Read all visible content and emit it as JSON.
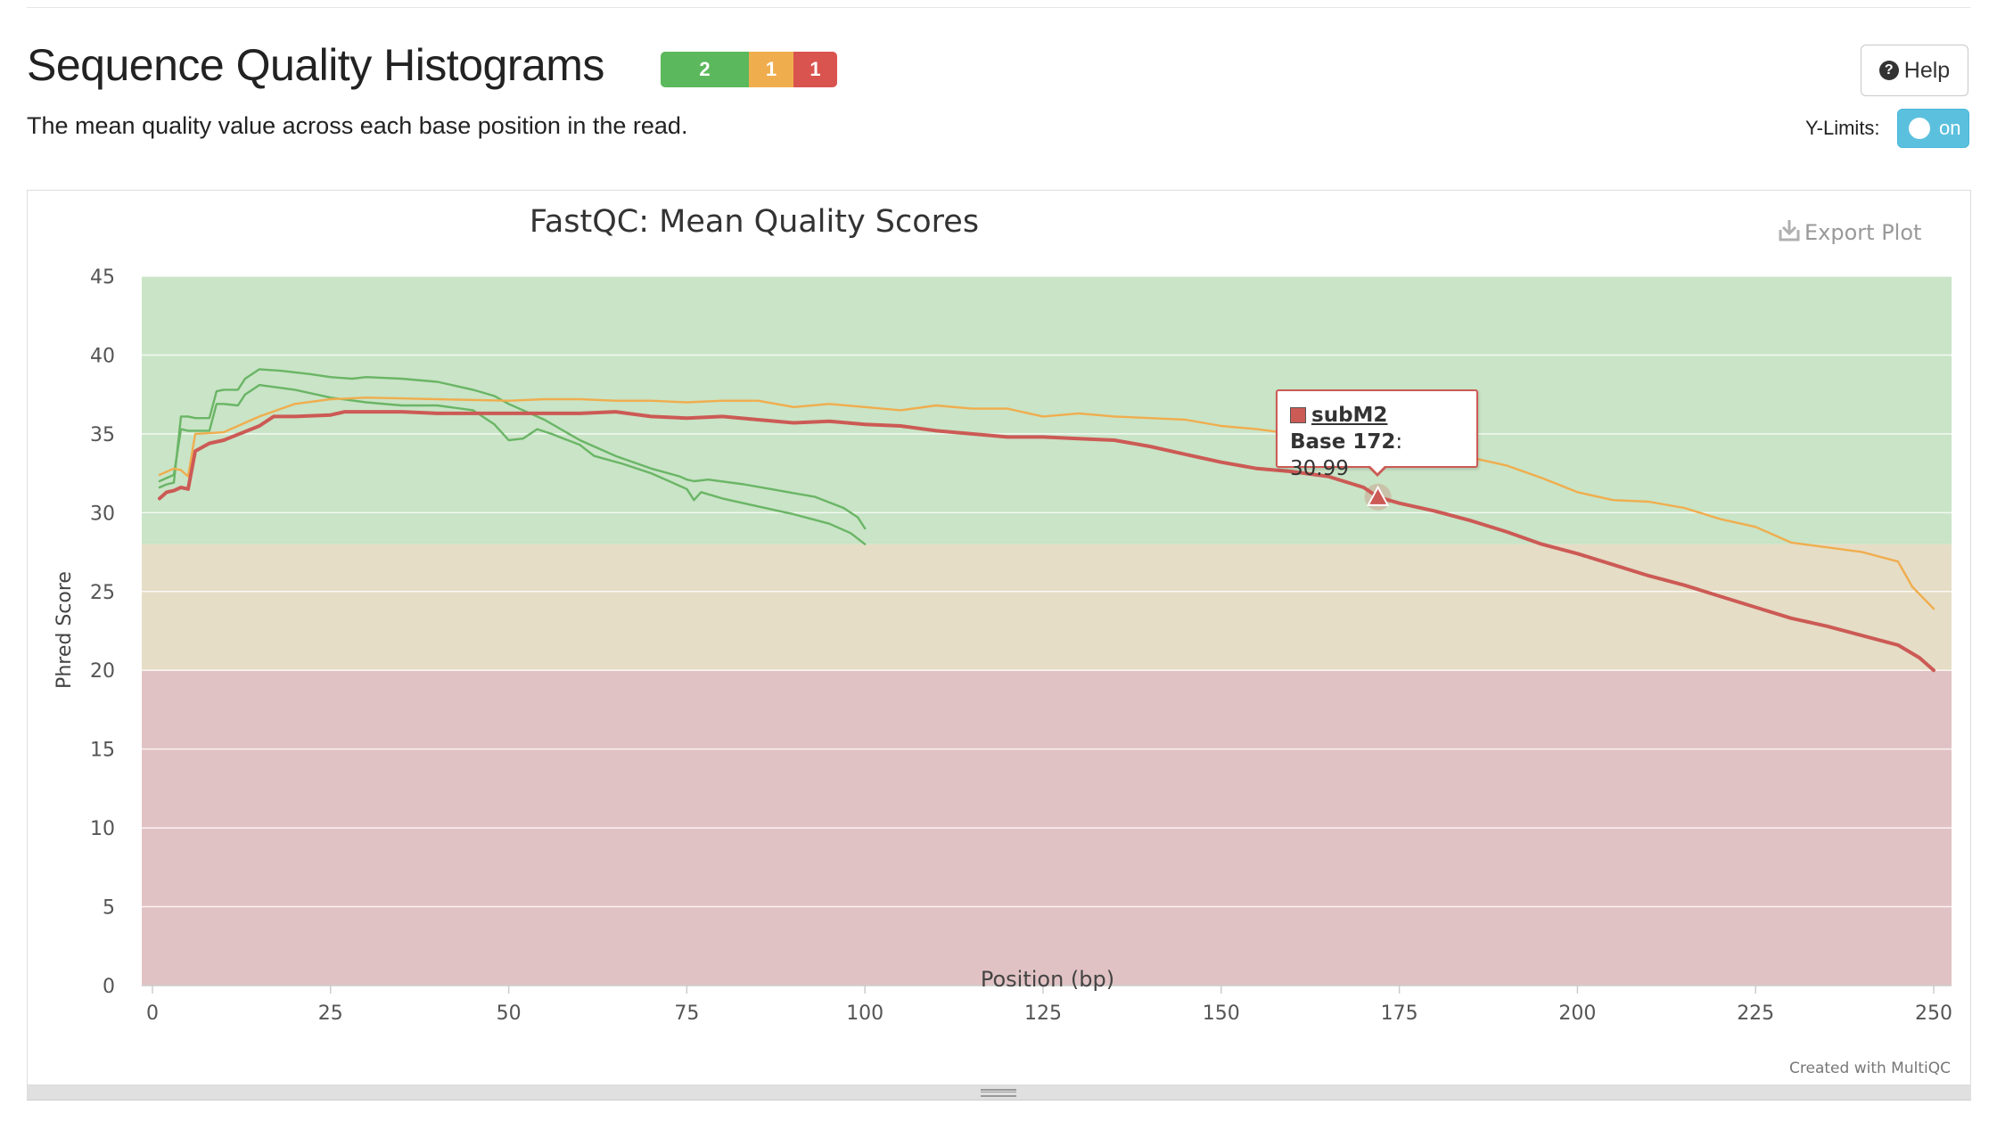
{
  "page": {
    "title": "Sequence Quality Histograms",
    "description": "The mean quality value across each base position in the read.",
    "status": [
      {
        "count": "2",
        "color": "#5cb85c"
      },
      {
        "count": "1",
        "color": "#f0ad4e"
      },
      {
        "count": "1",
        "color": "#d9534f"
      }
    ],
    "help_label": "Help",
    "ylimits_label": "Y-Limits:",
    "ylimits_state": "on",
    "export_label": "Export Plot",
    "credit": "Created with MultiQC"
  },
  "tooltip": {
    "sample": "subM2",
    "base_label": "Base 172",
    "value": ": 30.99"
  },
  "chart_data": {
    "type": "line",
    "title": "FastQC: Mean Quality Scores",
    "xlabel": "Position (bp)",
    "ylabel": "Phred Score",
    "xlim": [
      0,
      250
    ],
    "ylim": [
      0,
      45
    ],
    "xticks": [
      0,
      25,
      50,
      75,
      100,
      125,
      150,
      175,
      200,
      225,
      250
    ],
    "yticks": [
      0,
      5,
      10,
      15,
      20,
      25,
      30,
      35,
      40,
      45
    ],
    "grid": true,
    "bands": [
      {
        "from": 28,
        "to": 45,
        "color": "#c9e4c6"
      },
      {
        "from": 20,
        "to": 28,
        "color": "#e5ddc6"
      },
      {
        "from": 0,
        "to": 20,
        "color": "#e1c2c4"
      }
    ],
    "series": [
      {
        "color": "#6ab566",
        "width": 2.4,
        "points": [
          [
            1,
            31.6
          ],
          [
            2,
            31.8
          ],
          [
            3,
            31.9
          ],
          [
            4,
            36.1
          ],
          [
            5,
            36.1
          ],
          [
            6,
            36.0
          ],
          [
            8,
            36.0
          ],
          [
            9,
            37.7
          ],
          [
            10,
            37.8
          ],
          [
            12,
            37.8
          ],
          [
            13,
            38.5
          ],
          [
            15,
            39.1
          ],
          [
            18,
            39.0
          ],
          [
            22,
            38.8
          ],
          [
            25,
            38.6
          ],
          [
            28,
            38.5
          ],
          [
            30,
            38.6
          ],
          [
            35,
            38.5
          ],
          [
            40,
            38.3
          ],
          [
            45,
            37.8
          ],
          [
            48,
            37.4
          ],
          [
            50,
            36.9
          ],
          [
            55,
            35.9
          ],
          [
            60,
            34.6
          ],
          [
            65,
            33.6
          ],
          [
            70,
            32.8
          ],
          [
            74,
            32.3
          ],
          [
            75,
            32.1
          ],
          [
            76,
            32.0
          ],
          [
            78,
            32.1
          ],
          [
            83,
            31.8
          ],
          [
            88,
            31.4
          ],
          [
            93,
            31.0
          ],
          [
            97,
            30.3
          ],
          [
            99,
            29.7
          ],
          [
            100,
            29.0
          ]
        ]
      },
      {
        "color": "#6ab566",
        "width": 2.4,
        "points": [
          [
            1,
            32.0
          ],
          [
            2,
            32.2
          ],
          [
            3,
            32.4
          ],
          [
            4,
            35.3
          ],
          [
            5,
            35.2
          ],
          [
            6,
            35.2
          ],
          [
            8,
            35.2
          ],
          [
            9,
            36.9
          ],
          [
            10,
            36.9
          ],
          [
            12,
            36.8
          ],
          [
            13,
            37.5
          ],
          [
            15,
            38.1
          ],
          [
            20,
            37.8
          ],
          [
            25,
            37.3
          ],
          [
            30,
            37.0
          ],
          [
            35,
            36.8
          ],
          [
            40,
            36.8
          ],
          [
            45,
            36.5
          ],
          [
            48,
            35.6
          ],
          [
            50,
            34.6
          ],
          [
            52,
            34.7
          ],
          [
            54,
            35.3
          ],
          [
            56,
            35.0
          ],
          [
            60,
            34.3
          ],
          [
            62,
            33.6
          ],
          [
            66,
            33.1
          ],
          [
            70,
            32.5
          ],
          [
            73,
            31.9
          ],
          [
            75,
            31.5
          ],
          [
            76,
            30.8
          ],
          [
            77,
            31.3
          ],
          [
            80,
            30.9
          ],
          [
            85,
            30.4
          ],
          [
            90,
            29.9
          ],
          [
            95,
            29.3
          ],
          [
            98,
            28.7
          ],
          [
            100,
            28.0
          ]
        ]
      },
      {
        "color": "#f0ad4e",
        "width": 2.4,
        "points": [
          [
            1,
            32.4
          ],
          [
            3,
            32.8
          ],
          [
            4,
            32.7
          ],
          [
            5,
            32.3
          ],
          [
            6,
            35.0
          ],
          [
            10,
            35.1
          ],
          [
            15,
            36.1
          ],
          [
            20,
            36.9
          ],
          [
            25,
            37.2
          ],
          [
            30,
            37.3
          ],
          [
            40,
            37.2
          ],
          [
            50,
            37.1
          ],
          [
            55,
            37.2
          ],
          [
            60,
            37.2
          ],
          [
            65,
            37.1
          ],
          [
            70,
            37.1
          ],
          [
            75,
            37.0
          ],
          [
            80,
            37.1
          ],
          [
            85,
            37.1
          ],
          [
            90,
            36.7
          ],
          [
            95,
            36.9
          ],
          [
            100,
            36.7
          ],
          [
            105,
            36.5
          ],
          [
            110,
            36.8
          ],
          [
            115,
            36.6
          ],
          [
            120,
            36.6
          ],
          [
            125,
            36.1
          ],
          [
            130,
            36.3
          ],
          [
            135,
            36.1
          ],
          [
            140,
            36.0
          ],
          [
            145,
            35.9
          ],
          [
            150,
            35.5
          ],
          [
            155,
            35.3
          ],
          [
            160,
            35.0
          ],
          [
            165,
            34.6
          ],
          [
            170,
            34.3
          ],
          [
            175,
            34.0
          ],
          [
            180,
            33.8
          ],
          [
            185,
            33.5
          ],
          [
            190,
            33.0
          ],
          [
            195,
            32.2
          ],
          [
            200,
            31.3
          ],
          [
            205,
            30.8
          ],
          [
            210,
            30.7
          ],
          [
            215,
            30.3
          ],
          [
            220,
            29.6
          ],
          [
            225,
            29.1
          ],
          [
            230,
            28.1
          ],
          [
            235,
            27.8
          ],
          [
            240,
            27.5
          ],
          [
            245,
            26.9
          ],
          [
            247,
            25.3
          ],
          [
            250,
            23.9
          ]
        ]
      },
      {
        "color": "#cc5a55",
        "width": 4,
        "points": [
          [
            1,
            30.9
          ],
          [
            2,
            31.3
          ],
          [
            3,
            31.4
          ],
          [
            4,
            31.6
          ],
          [
            5,
            31.5
          ],
          [
            6,
            33.9
          ],
          [
            8,
            34.4
          ],
          [
            10,
            34.6
          ],
          [
            15,
            35.5
          ],
          [
            17,
            36.1
          ],
          [
            20,
            36.1
          ],
          [
            25,
            36.2
          ],
          [
            27,
            36.4
          ],
          [
            30,
            36.4
          ],
          [
            35,
            36.4
          ],
          [
            40,
            36.3
          ],
          [
            45,
            36.3
          ],
          [
            50,
            36.3
          ],
          [
            55,
            36.3
          ],
          [
            60,
            36.3
          ],
          [
            65,
            36.4
          ],
          [
            70,
            36.1
          ],
          [
            75,
            36.0
          ],
          [
            80,
            36.1
          ],
          [
            85,
            35.9
          ],
          [
            90,
            35.7
          ],
          [
            95,
            35.8
          ],
          [
            100,
            35.6
          ],
          [
            105,
            35.5
          ],
          [
            110,
            35.2
          ],
          [
            115,
            35.0
          ],
          [
            120,
            34.8
          ],
          [
            125,
            34.8
          ],
          [
            130,
            34.7
          ],
          [
            135,
            34.6
          ],
          [
            140,
            34.2
          ],
          [
            145,
            33.7
          ],
          [
            150,
            33.2
          ],
          [
            155,
            32.8
          ],
          [
            160,
            32.6
          ],
          [
            165,
            32.3
          ],
          [
            170,
            31.6
          ],
          [
            172,
            30.99
          ],
          [
            175,
            30.6
          ],
          [
            180,
            30.1
          ],
          [
            185,
            29.5
          ],
          [
            190,
            28.8
          ],
          [
            195,
            28.0
          ],
          [
            200,
            27.4
          ],
          [
            205,
            26.7
          ],
          [
            210,
            26.0
          ],
          [
            215,
            25.4
          ],
          [
            220,
            24.7
          ],
          [
            225,
            24.0
          ],
          [
            230,
            23.3
          ],
          [
            235,
            22.8
          ],
          [
            240,
            22.2
          ],
          [
            245,
            21.6
          ],
          [
            248,
            20.8
          ],
          [
            250,
            20.0
          ]
        ]
      }
    ],
    "highlight": {
      "x": 172,
      "y": 30.99,
      "color": "#cc5a55"
    }
  }
}
